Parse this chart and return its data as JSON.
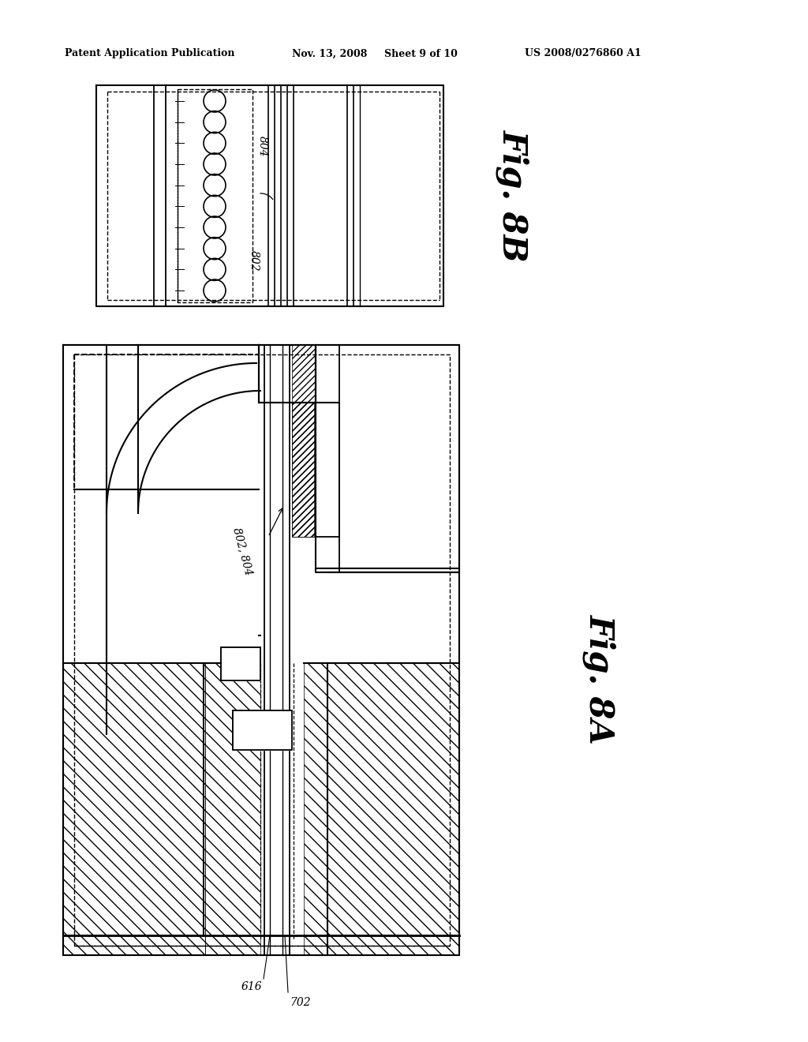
{
  "background_color": "#ffffff",
  "header_text": "Patent Application Publication",
  "header_date": "Nov. 13, 2008",
  "header_sheet": "Sheet 9 of 10",
  "header_patent": "US 2008/0276860 A1",
  "fig8b_label": "Fig. 8B",
  "fig8a_label": "Fig. 8A",
  "label_802": "802",
  "label_804": "804",
  "label_802_804": "802, 804",
  "label_616": "616",
  "label_702": "702"
}
